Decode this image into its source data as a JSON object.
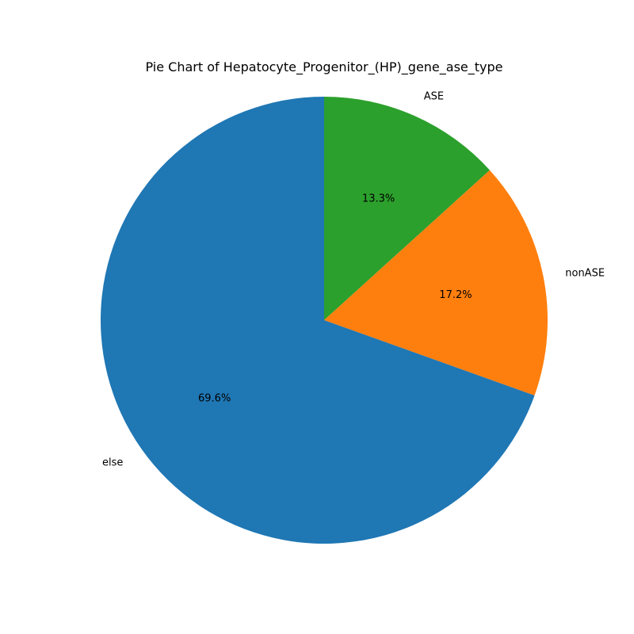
{
  "chart_data": {
    "type": "pie",
    "title": "Pie Chart of Hepatocyte_Progenitor_(HP)_gene_ase_type",
    "start_angle_deg": 90,
    "direction": "clockwise",
    "slices": [
      {
        "label": "ASE",
        "value": 13.3,
        "pct_label": "13.3%",
        "color": "#2ca02c"
      },
      {
        "label": "nonASE",
        "value": 17.2,
        "pct_label": "17.2%",
        "color": "#ff7f0e"
      },
      {
        "label": "else",
        "value": 69.6,
        "pct_label": "69.6%",
        "color": "#1f77b4"
      }
    ]
  }
}
